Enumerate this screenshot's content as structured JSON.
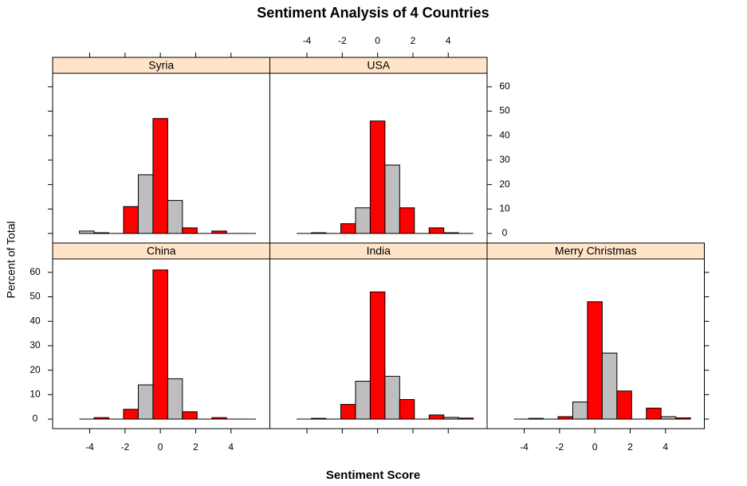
{
  "chart_data": {
    "type": "histogram",
    "title": "Sentiment Analysis of 4 Countries",
    "xlabel": "Sentiment Score",
    "ylabel": "Percent of Total",
    "bins": [
      -4.583,
      -3.75,
      -2.917,
      -2.083,
      -1.25,
      -0.417,
      0.417,
      1.25,
      2.083,
      2.917,
      3.75,
      4.583,
      5.417
    ],
    "colors": [
      "#bebebe",
      "#ff0000",
      "#bebebe",
      "#ff0000",
      "#bebebe",
      "#ff0000",
      "#bebebe",
      "#ff0000",
      "#bebebe",
      "#ff0000",
      "#bebebe",
      "#ff0000"
    ],
    "strip_color": "#ffe4c8",
    "xlim": [
      -6.1,
      6.2
    ],
    "xticks": [
      -4,
      -2,
      0,
      2,
      4
    ],
    "ylim": [
      -3.9,
      65.5
    ],
    "yticks": [
      0,
      10,
      20,
      30,
      40,
      50,
      60
    ],
    "panels": [
      {
        "name": "China",
        "values": [
          0,
          0.6,
          0,
          4,
          14,
          61,
          16.5,
          3,
          0,
          0.6,
          0,
          0
        ]
      },
      {
        "name": "India",
        "values": [
          0,
          0.3,
          0,
          6,
          15.5,
          52,
          17.5,
          8,
          0,
          1.7,
          0.7,
          0.4
        ]
      },
      {
        "name": "Merry Christmas",
        "values": [
          0,
          0.3,
          0,
          1,
          7,
          48,
          27,
          11.5,
          0,
          4.5,
          1,
          0.5
        ]
      },
      {
        "name": "Syria",
        "values": [
          1,
          0.3,
          0,
          11,
          24,
          47,
          13.5,
          2.3,
          0,
          1,
          0,
          0
        ]
      },
      {
        "name": "USA",
        "values": [
          0,
          0.3,
          0,
          4,
          10.5,
          46,
          28,
          10.5,
          0,
          2.3,
          0.3,
          0
        ]
      }
    ]
  }
}
